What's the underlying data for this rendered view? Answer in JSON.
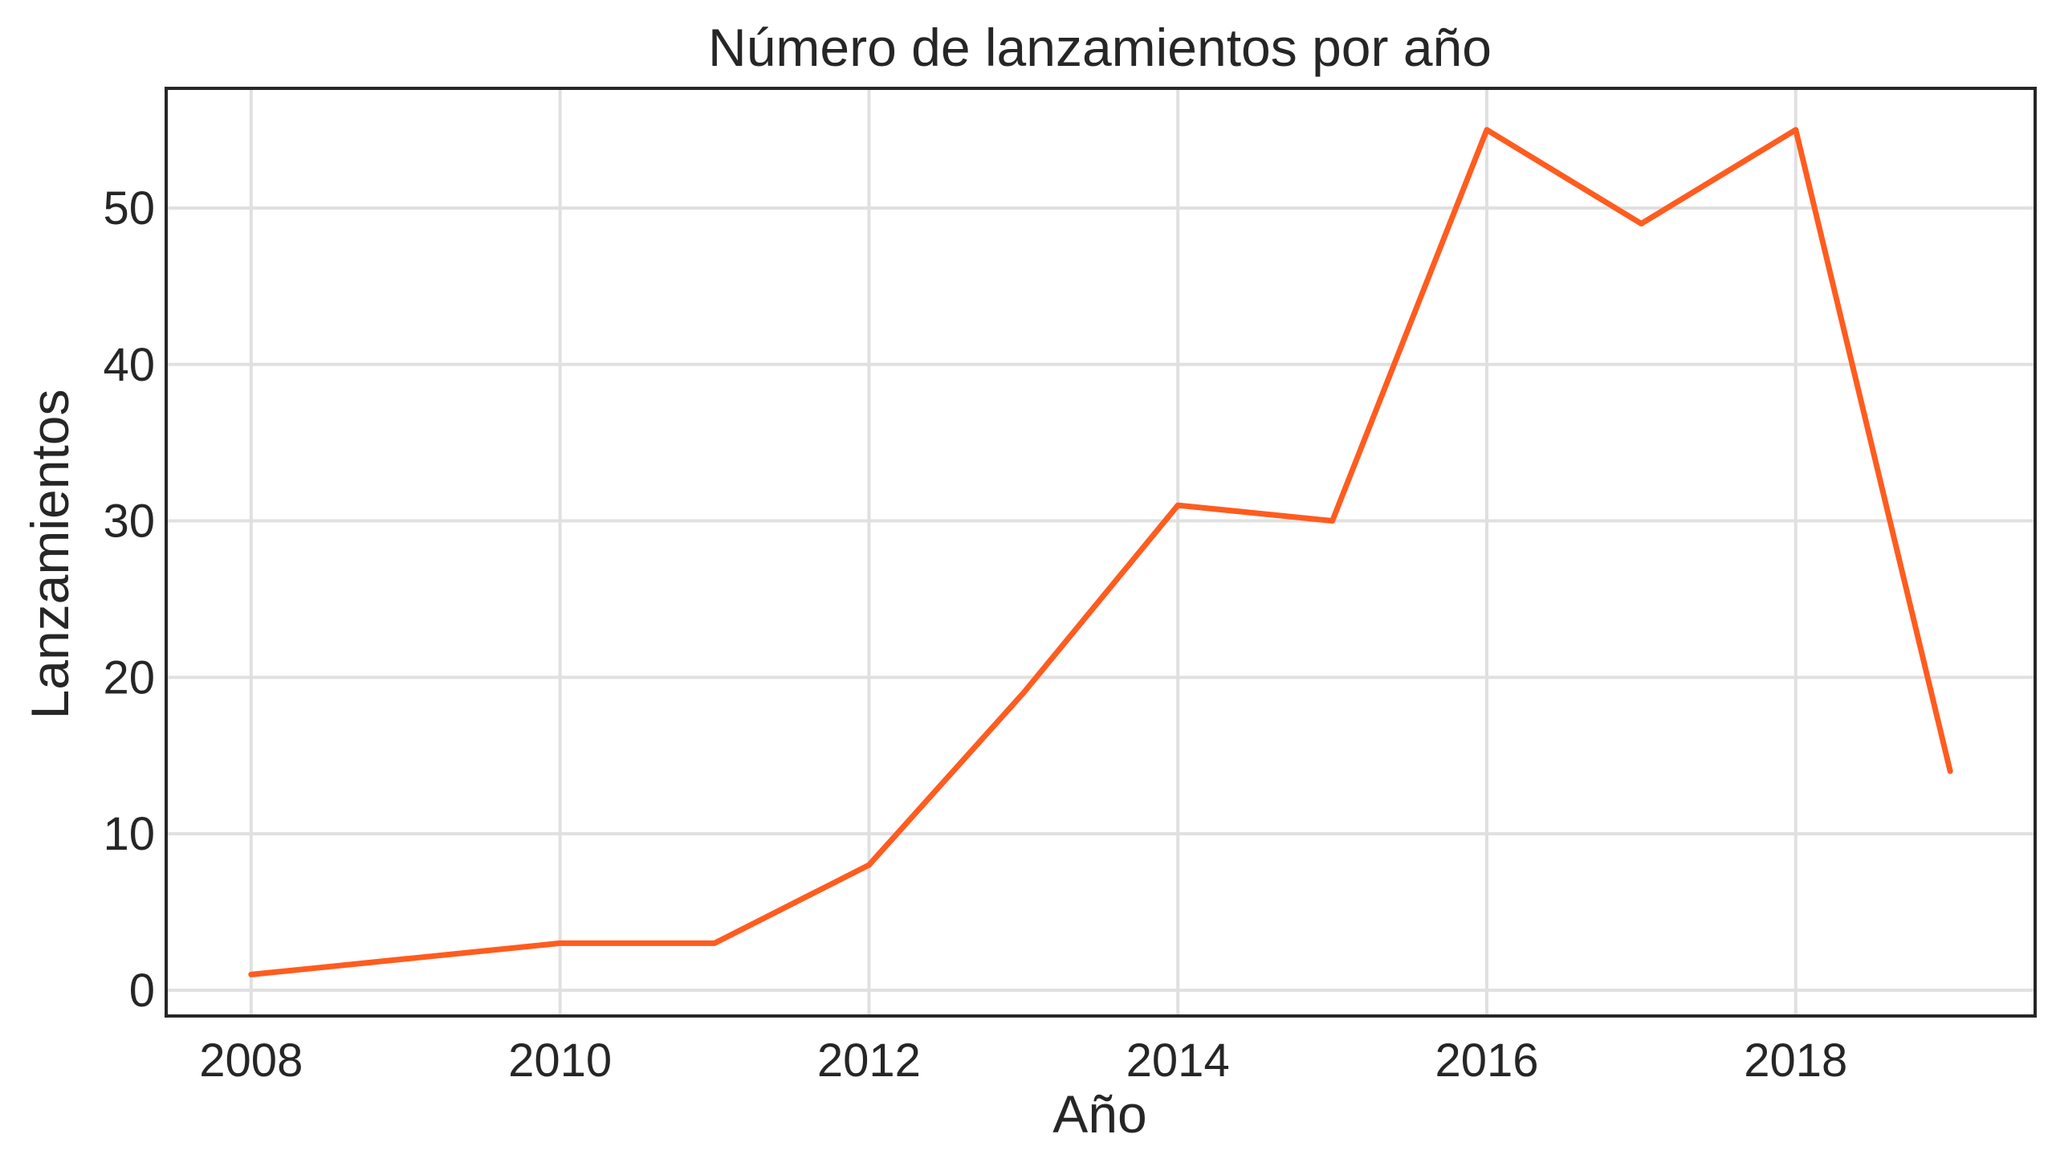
{
  "chart_data": {
    "type": "line",
    "title": "Número de lanzamientos por año",
    "xlabel": "Año",
    "ylabel": "Lanzamientos",
    "x": [
      2008,
      2009,
      2010,
      2011,
      2012,
      2013,
      2014,
      2015,
      2016,
      2017,
      2018,
      2019
    ],
    "series": [
      {
        "values": [
          1,
          2,
          3,
          3,
          8,
          19,
          31,
          30,
          55,
          49,
          55,
          14
        ],
        "color": "#ff5c1f"
      }
    ],
    "xlim": [
      2007.45,
      2019.55
    ],
    "ylim": [
      -1.65,
      57.65
    ],
    "xticks": [
      2008,
      2010,
      2012,
      2014,
      2016,
      2018
    ],
    "yticks": [
      0,
      10,
      20,
      30,
      40,
      50
    ],
    "grid": true,
    "legend": "none",
    "colors": {
      "line": "#ff5c1f",
      "grid": "#e0e0e0",
      "frame": "#262626",
      "text": "#262626"
    }
  }
}
